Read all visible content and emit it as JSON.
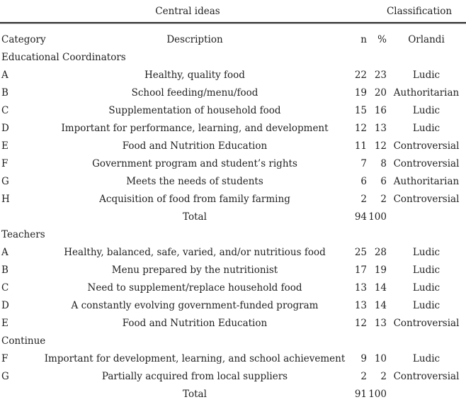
{
  "table": {
    "top_header": {
      "central_ideas": "Central ideas",
      "classification": "Classification"
    },
    "columns": {
      "category": "Category",
      "description": "Description",
      "n": "n",
      "pct": "%",
      "orlandi": "Orlandi"
    },
    "sections": [
      {
        "title": "Educational Coordinators",
        "rows": [
          {
            "cat": "A",
            "desc": "Healthy, quality food",
            "n": "22",
            "pct": "23",
            "orlandi": "Ludic"
          },
          {
            "cat": "B",
            "desc": "School feeding/menu/food",
            "n": "19",
            "pct": "20",
            "orlandi": "Authoritarian"
          },
          {
            "cat": "C",
            "desc": "Supplementation of household food",
            "n": "15",
            "pct": "16",
            "orlandi": "Ludic"
          },
          {
            "cat": "D",
            "desc": "Important for performance, learning, and development",
            "n": "12",
            "pct": "13",
            "orlandi": "Ludic"
          },
          {
            "cat": "E",
            "desc": "Food and Nutrition Education",
            "n": "11",
            "pct": "12",
            "orlandi": "Controversial"
          },
          {
            "cat": "F",
            "desc": "Government program and student’s rights",
            "n": "7",
            "pct": "8",
            "orlandi": "Controversial"
          },
          {
            "cat": "G",
            "desc": "Meets the needs of students",
            "n": "6",
            "pct": "6",
            "orlandi": "Authoritarian"
          },
          {
            "cat": "H",
            "desc": "Acquisition of food from family farming",
            "n": "2",
            "pct": "2",
            "orlandi": "Controversial"
          },
          {
            "cat": "",
            "desc": "Total",
            "n": "94",
            "pct": "100",
            "orlandi": ""
          }
        ]
      },
      {
        "title": "Teachers",
        "rows": [
          {
            "cat": "A",
            "desc": "Healthy, balanced, safe, varied, and/or nutritious food",
            "n": "25",
            "pct": "28",
            "orlandi": "Ludic"
          },
          {
            "cat": "B",
            "desc": "Menu prepared by the nutritionist",
            "n": "17",
            "pct": "19",
            "orlandi": "Ludic"
          },
          {
            "cat": "C",
            "desc": "Need to supplement/replace household food",
            "n": "13",
            "pct": "14",
            "orlandi": "Ludic"
          },
          {
            "cat": "D",
            "desc": "A constantly evolving government-funded program",
            "n": "13",
            "pct": "14",
            "orlandi": "Ludic"
          },
          {
            "cat": "E",
            "desc": "Food and Nutrition Education",
            "n": "12",
            "pct": "13",
            "orlandi": "Controversial"
          }
        ]
      },
      {
        "title": "Continue",
        "rows": [
          {
            "cat": "F",
            "desc": "Important for development, learning, and school achievement",
            "n": "9",
            "pct": "10",
            "orlandi": "Ludic"
          },
          {
            "cat": "G",
            "desc": "Partially acquired from local suppliers",
            "n": "2",
            "pct": "2",
            "orlandi": "Controversial"
          },
          {
            "cat": "",
            "desc": "Total",
            "n": "91",
            "pct": "100",
            "orlandi": ""
          }
        ]
      }
    ]
  }
}
